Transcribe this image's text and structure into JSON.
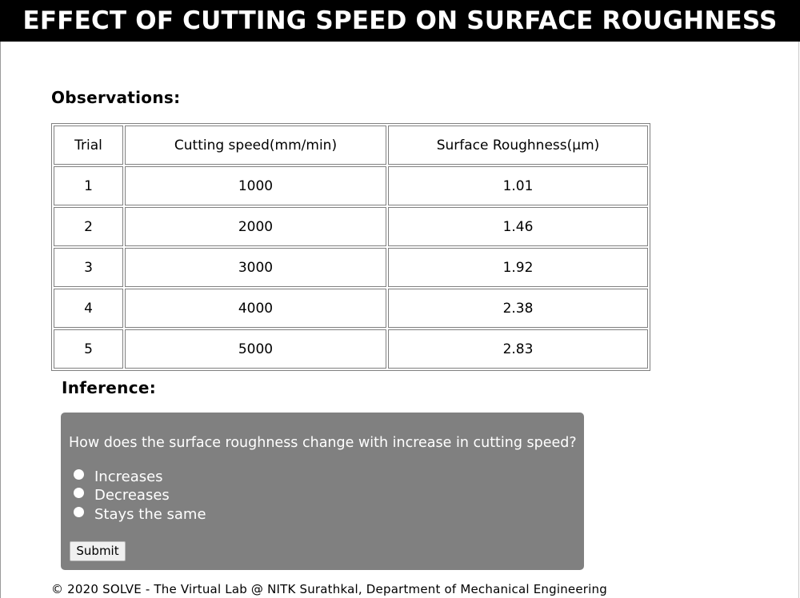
{
  "header": {
    "title": "EFFECT OF CUTTING SPEED ON SURFACE ROUGHNESS"
  },
  "observations": {
    "heading": "Observations:",
    "columns": [
      "Trial",
      "Cutting speed(mm/min)",
      "Surface Roughness(μm)"
    ],
    "rows": [
      [
        "1",
        "1000",
        "1.01"
      ],
      [
        "2",
        "2000",
        "1.46"
      ],
      [
        "3",
        "3000",
        "1.92"
      ],
      [
        "4",
        "4000",
        "2.38"
      ],
      [
        "5",
        "5000",
        "2.83"
      ]
    ]
  },
  "inference": {
    "heading": "Inference:",
    "question": "How does the surface roughness change with increase in cutting speed?",
    "options": [
      "Increases",
      "Decreases",
      "Stays the same"
    ],
    "selected": null,
    "submit_label": "Submit"
  },
  "footer": {
    "text": "© 2020 SOLVE - The Virtual Lab @ NITK Surathkal, Department of Mechanical Engineering"
  },
  "colors": {
    "header_bg": "#000000",
    "header_text": "#ffffff",
    "quiz_bg": "#808080",
    "quiz_text": "#ffffff",
    "table_border": "#808080"
  }
}
